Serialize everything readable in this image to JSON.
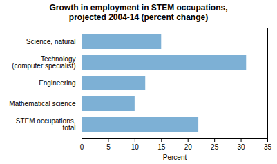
{
  "chart_data": {
    "type": "bar",
    "orientation": "horizontal",
    "title": "Growth in employment in STEM occupations,\nprojected 2004-14 (percent change)",
    "categories": [
      "STEM occupations,\ntotal",
      "Mathematical science",
      "Engineering",
      "Technology\n(computer specialist)",
      "Science, natural"
    ],
    "values": [
      22,
      10,
      12,
      31,
      15
    ],
    "color": "#7db0d5",
    "xlabel": "Percent",
    "xlim": [
      0,
      35
    ],
    "xticks": [
      0,
      5,
      10,
      15,
      20,
      25,
      30,
      35
    ],
    "grid": false
  }
}
